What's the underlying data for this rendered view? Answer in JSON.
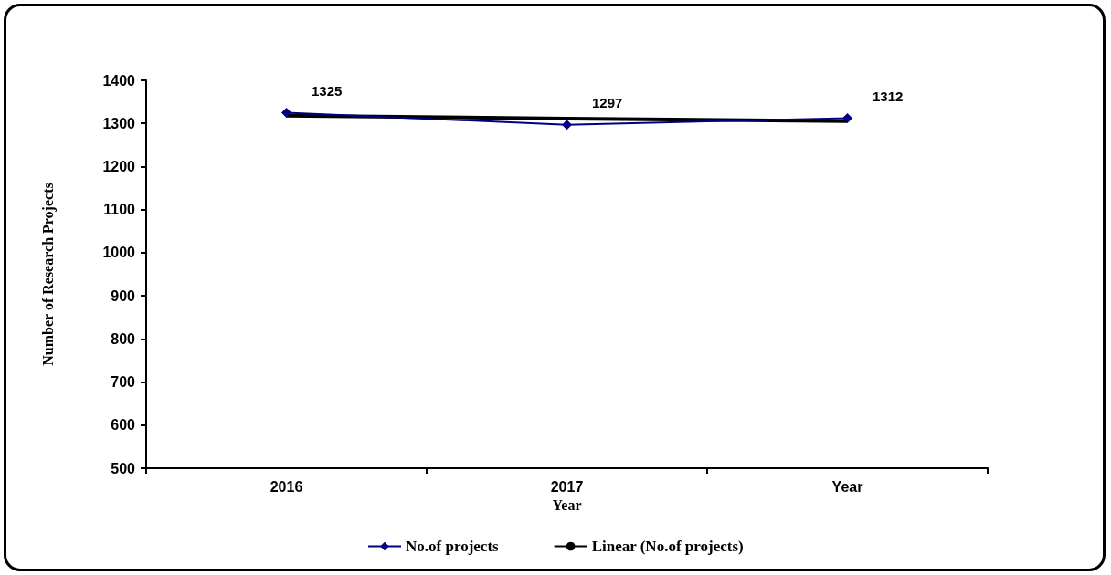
{
  "chart_data": {
    "type": "line",
    "xlabel": "Year",
    "ylabel": "Number of Research Projects",
    "categories": [
      "2016",
      "2017",
      "Year"
    ],
    "series": [
      {
        "name": "No.of projects",
        "color": "#000080",
        "values": [
          1325,
          1297,
          1312
        ],
        "marker": "diamond",
        "data_labels": true
      },
      {
        "name": "Linear (No.of projects)",
        "color": "#000000",
        "values": [
          1318,
          1311,
          1305
        ],
        "marker": "none"
      }
    ],
    "ylim": [
      500,
      1400
    ],
    "yticks": [
      500,
      600,
      700,
      800,
      900,
      1000,
      1100,
      1200,
      1300,
      1400
    ],
    "grid": false,
    "legend": "bottom"
  }
}
